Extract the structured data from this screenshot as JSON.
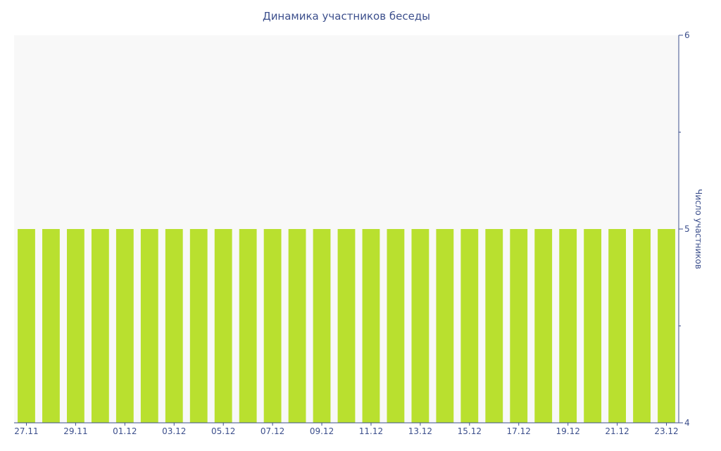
{
  "chart_data": {
    "type": "bar",
    "title": "Динамика участников беседы",
    "xlabel": "",
    "ylabel": "Число участников",
    "y_axis_side": "right",
    "ylim": [
      4,
      6
    ],
    "y_ticks": [
      "4",
      "5",
      "6"
    ],
    "categories": [
      "27.11",
      "28.11",
      "29.11",
      "30.11",
      "01.12",
      "02.12",
      "03.12",
      "04.12",
      "05.12",
      "06.12",
      "07.12",
      "08.12",
      "09.12",
      "10.12",
      "11.12",
      "12.12",
      "13.12",
      "14.12",
      "15.12",
      "16.12",
      "17.12",
      "18.12",
      "19.12",
      "20.12",
      "21.12",
      "22.12",
      "23.12"
    ],
    "x_tick_labels": [
      "27.11",
      "29.11",
      "01.12",
      "03.12",
      "05.12",
      "07.12",
      "09.12",
      "11.12",
      "13.12",
      "15.12",
      "17.12",
      "19.12",
      "21.12",
      "23.12"
    ],
    "series": [
      {
        "values": [
          5,
          5,
          5,
          5,
          5,
          5,
          5,
          5,
          5,
          5,
          5,
          5,
          5,
          5,
          5,
          5,
          5,
          5,
          5,
          5,
          5,
          5,
          5,
          5,
          5,
          5,
          5
        ]
      }
    ],
    "colors": {
      "bar": "#b9e02f",
      "plot_background": "#f8f8f8",
      "axis": "#3c4f8c",
      "text": "#3c4f8c"
    },
    "grid": false,
    "legend": "none"
  }
}
